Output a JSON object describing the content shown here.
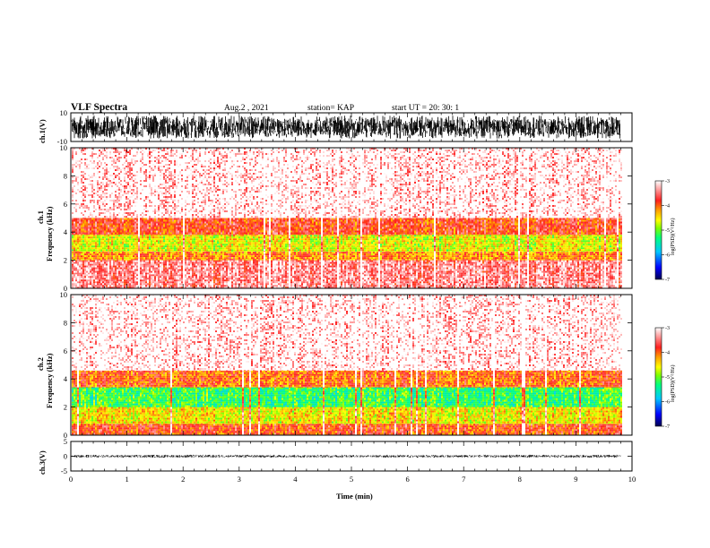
{
  "header": {
    "title": "VLF Spectra",
    "date": "Aug.2  , 2021",
    "station": "station= KAP",
    "start_ut": "start  UT  =   20: 30: 1"
  },
  "colors": {
    "background": "#ffffff",
    "frame": "#000000",
    "trace": "#000000",
    "colormap": [
      "#000050",
      "#0000ff",
      "#00c8ff",
      "#00ff80",
      "#80ff00",
      "#ffff00",
      "#ffa000",
      "#ff2020",
      "#ffffff"
    ]
  },
  "chart_data": [
    {
      "type": "line",
      "panel": "ch1_waveform",
      "ylabel": "ch.1(V)",
      "ylim": [
        -10,
        10
      ],
      "y_ticks": [
        "10",
        "-10"
      ],
      "xlim": [
        0,
        10
      ],
      "trace_end_min": 9.8,
      "amplitude_envelope": [
        -8,
        8
      ]
    },
    {
      "type": "heatmap",
      "panel": "ch1_spectrogram",
      "ylabel": "ch.1\nFrequency (kHz)",
      "ylabel_lines": [
        "ch.1",
        "Frequency  (kHz)"
      ],
      "ylim": [
        0,
        10
      ],
      "y_ticks": [
        "0",
        "2",
        "4",
        "6",
        "8",
        "10"
      ],
      "xlim": [
        0,
        10
      ],
      "data_end_min": 9.8,
      "colorbar": {
        "label": "log(PSD)(V²/Hz)",
        "range": [
          -7,
          -3
        ],
        "ticks": [
          "-3",
          "-4",
          "-5",
          "-6",
          "-7"
        ]
      },
      "bands": [
        {
          "from_khz": 0.0,
          "to_khz": 1.0,
          "level": 0.9
        },
        {
          "from_khz": 1.0,
          "to_khz": 2.0,
          "level": 0.9
        },
        {
          "from_khz": 2.0,
          "to_khz": 2.6,
          "level": 0.72
        },
        {
          "from_khz": 2.6,
          "to_khz": 3.8,
          "level": 0.6
        },
        {
          "from_khz": 3.8,
          "to_khz": 5.0,
          "level": 0.8
        },
        {
          "from_khz": 5.0,
          "to_khz": 10.0,
          "level": 0.97
        }
      ]
    },
    {
      "type": "heatmap",
      "panel": "ch2_spectrogram",
      "ylabel_lines": [
        "ch.2",
        "Frequency  (kHz)"
      ],
      "ylim": [
        0,
        10
      ],
      "y_ticks": [
        "0",
        "2",
        "4",
        "6",
        "8",
        "10"
      ],
      "xlim": [
        0,
        10
      ],
      "data_end_min": 9.8,
      "colorbar": {
        "label": "log(PSD)(V²/Hz)",
        "range": [
          -7,
          -3
        ],
        "ticks": [
          "-3",
          "-4",
          "-5",
          "-6",
          "-7"
        ]
      },
      "bands": [
        {
          "from_khz": 0.0,
          "to_khz": 0.8,
          "level": 0.78
        },
        {
          "from_khz": 0.8,
          "to_khz": 2.0,
          "level": 0.62
        },
        {
          "from_khz": 2.0,
          "to_khz": 3.4,
          "level": 0.45
        },
        {
          "from_khz": 3.4,
          "to_khz": 4.6,
          "level": 0.75
        },
        {
          "from_khz": 4.6,
          "to_khz": 10.0,
          "level": 0.97
        }
      ]
    },
    {
      "type": "line",
      "panel": "ch3_waveform",
      "ylabel": "ch.3(V)",
      "ylim": [
        -5,
        5
      ],
      "y_ticks": [
        "5",
        "0",
        "-5"
      ],
      "xlim": [
        0,
        10
      ],
      "x_ticks": [
        "0",
        "1",
        "2",
        "3",
        "4",
        "5",
        "6",
        "7",
        "8",
        "9",
        "10"
      ],
      "xlabel": "Time  (min)",
      "trace_end_min": 9.8,
      "amplitude_envelope": [
        -0.5,
        0.5
      ]
    }
  ]
}
